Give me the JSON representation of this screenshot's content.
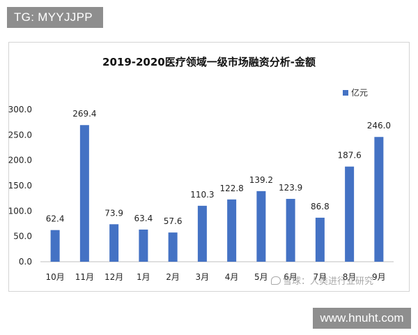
{
  "tag_label": "TG: MYYJJPP",
  "watermark_text": "雪球：人类进行业研究",
  "site_label": "www.hnuht.com",
  "chart_data": {
    "type": "bar",
    "title": "2019-2020医疗领域一级市场融资分析-金额",
    "categories": [
      "10月",
      "11月",
      "12月",
      "1月",
      "2月",
      "3月",
      "4月",
      "5月",
      "6月",
      "7月",
      "8月",
      "9月"
    ],
    "series": [
      {
        "name": "亿元",
        "values": [
          62.4,
          269.4,
          73.9,
          63.4,
          57.6,
          110.3,
          122.8,
          139.2,
          123.9,
          86.8,
          187.6,
          246.0
        ],
        "labels": [
          "62.4",
          "269.4",
          "73.9",
          "63.4",
          "57.6",
          "110.3",
          "122.8",
          "139.2",
          "123.9",
          "86.8",
          "187.6",
          "246.0"
        ]
      }
    ],
    "yticks": [
      "0.0",
      "50.0",
      "100.0",
      "150.0",
      "200.0",
      "250.0",
      "300.0"
    ],
    "ylim": [
      0,
      300
    ],
    "grid": false,
    "legend": "top-right",
    "colors": {
      "bar": "#4472c4",
      "axis": "#bfbfbf",
      "text": "#222222"
    }
  }
}
